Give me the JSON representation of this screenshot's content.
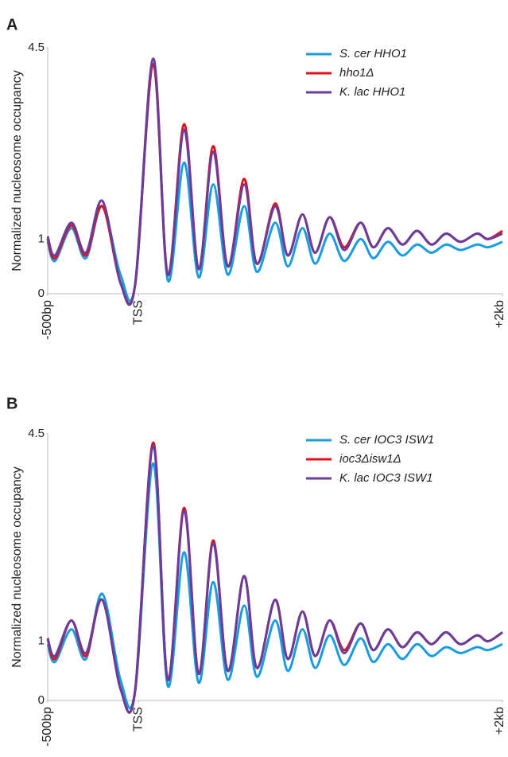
{
  "chart_data": [
    {
      "type": "line",
      "panel_label": "A",
      "y_label": "Normalized nucleosome occupancy",
      "x": [
        -500,
        -460,
        -370,
        -290,
        -200,
        -100,
        -20,
        80,
        160,
        250,
        330,
        410,
        490,
        580,
        650,
        750,
        820,
        900,
        970,
        1050,
        1130,
        1220,
        1290,
        1370,
        1450,
        1530,
        1610,
        1690,
        1770,
        1860,
        1920,
        2000
      ],
      "series": [
        {
          "name": "S. cer HHO1",
          "color": "#1a9de0",
          "values": [
            0.95,
            0.6,
            1.2,
            0.65,
            1.6,
            0.35,
            0.15,
            4.2,
            0.25,
            2.4,
            0.3,
            2.0,
            0.35,
            1.6,
            0.4,
            1.3,
            0.5,
            1.2,
            0.55,
            1.1,
            0.6,
            1.0,
            0.65,
            0.95,
            0.7,
            0.9,
            0.75,
            0.9,
            0.8,
            0.9,
            0.85,
            0.95
          ]
        },
        {
          "name": "hho1Δ",
          "color": "#e0101a",
          "values": [
            1.0,
            0.65,
            1.25,
            0.7,
            1.6,
            0.2,
            0.15,
            4.2,
            0.35,
            3.1,
            0.45,
            2.7,
            0.5,
            2.1,
            0.55,
            1.65,
            0.7,
            1.45,
            0.75,
            1.4,
            0.85,
            1.3,
            0.85,
            1.2,
            0.9,
            1.15,
            0.9,
            1.1,
            0.95,
            1.1,
            1.0,
            1.15
          ]
        },
        {
          "name": "K. lac HHO1",
          "color": "#6a3d9a",
          "values": [
            1.05,
            0.7,
            1.3,
            0.75,
            1.7,
            0.2,
            0.15,
            4.3,
            0.35,
            3.0,
            0.45,
            2.6,
            0.5,
            2.0,
            0.55,
            1.6,
            0.7,
            1.45,
            0.75,
            1.4,
            0.8,
            1.3,
            0.85,
            1.2,
            0.9,
            1.15,
            0.9,
            1.1,
            0.95,
            1.1,
            1.0,
            1.1
          ]
        }
      ],
      "xlim": [
        -500,
        2000
      ],
      "xticks": [
        {
          "value": -500,
          "label": "-500bp"
        },
        {
          "value": 0,
          "label": "TSS"
        },
        {
          "value": 2000,
          "label": "+2kb"
        }
      ],
      "ylim": [
        0,
        4.5
      ],
      "yticks": [
        0,
        1,
        4.5
      ],
      "legend": "upper right"
    },
    {
      "type": "line",
      "panel_label": "B",
      "y_label": "Normalized nucleosome occupancy",
      "x": [
        -500,
        -460,
        -370,
        -290,
        -200,
        -100,
        -20,
        80,
        160,
        250,
        330,
        410,
        490,
        580,
        650,
        750,
        820,
        900,
        970,
        1050,
        1130,
        1220,
        1290,
        1370,
        1450,
        1530,
        1610,
        1690,
        1770,
        1860,
        1920,
        2000
      ],
      "series": [
        {
          "name": "S. cer IOC3 ISW1",
          "color": "#1a9de0",
          "values": [
            0.95,
            0.65,
            1.2,
            0.7,
            1.8,
            0.35,
            0.15,
            4.0,
            0.25,
            2.5,
            0.3,
            2.0,
            0.35,
            1.6,
            0.4,
            1.35,
            0.5,
            1.2,
            0.55,
            1.1,
            0.6,
            1.05,
            0.65,
            0.95,
            0.7,
            0.95,
            0.75,
            0.9,
            0.8,
            0.9,
            0.85,
            0.95
          ]
        },
        {
          "name": "ioc3Δisw1Δ",
          "color": "#e0101a",
          "values": [
            1.05,
            0.7,
            1.35,
            0.75,
            1.7,
            0.2,
            0.15,
            4.35,
            0.35,
            3.25,
            0.45,
            2.7,
            0.5,
            2.1,
            0.55,
            1.7,
            0.7,
            1.5,
            0.75,
            1.35,
            0.85,
            1.3,
            0.85,
            1.2,
            0.9,
            1.15,
            0.95,
            1.15,
            0.95,
            1.1,
            1.0,
            1.15
          ]
        },
        {
          "name": "K. lac IOC3 ISW1",
          "color": "#6a3d9a",
          "values": [
            1.05,
            0.75,
            1.35,
            0.8,
            1.7,
            0.2,
            0.15,
            4.3,
            0.35,
            3.2,
            0.45,
            2.65,
            0.5,
            2.1,
            0.55,
            1.7,
            0.7,
            1.5,
            0.75,
            1.35,
            0.8,
            1.3,
            0.85,
            1.2,
            0.9,
            1.15,
            0.95,
            1.15,
            0.95,
            1.1,
            1.0,
            1.15
          ]
        }
      ],
      "xlim": [
        -500,
        2000
      ],
      "xticks": [
        {
          "value": -500,
          "label": "-500bp"
        },
        {
          "value": 0,
          "label": "TSS"
        },
        {
          "value": 2000,
          "label": "+2kb"
        }
      ],
      "ylim": [
        0,
        4.5
      ],
      "yticks": [
        0,
        1,
        4.5
      ],
      "legend": "upper right"
    }
  ]
}
